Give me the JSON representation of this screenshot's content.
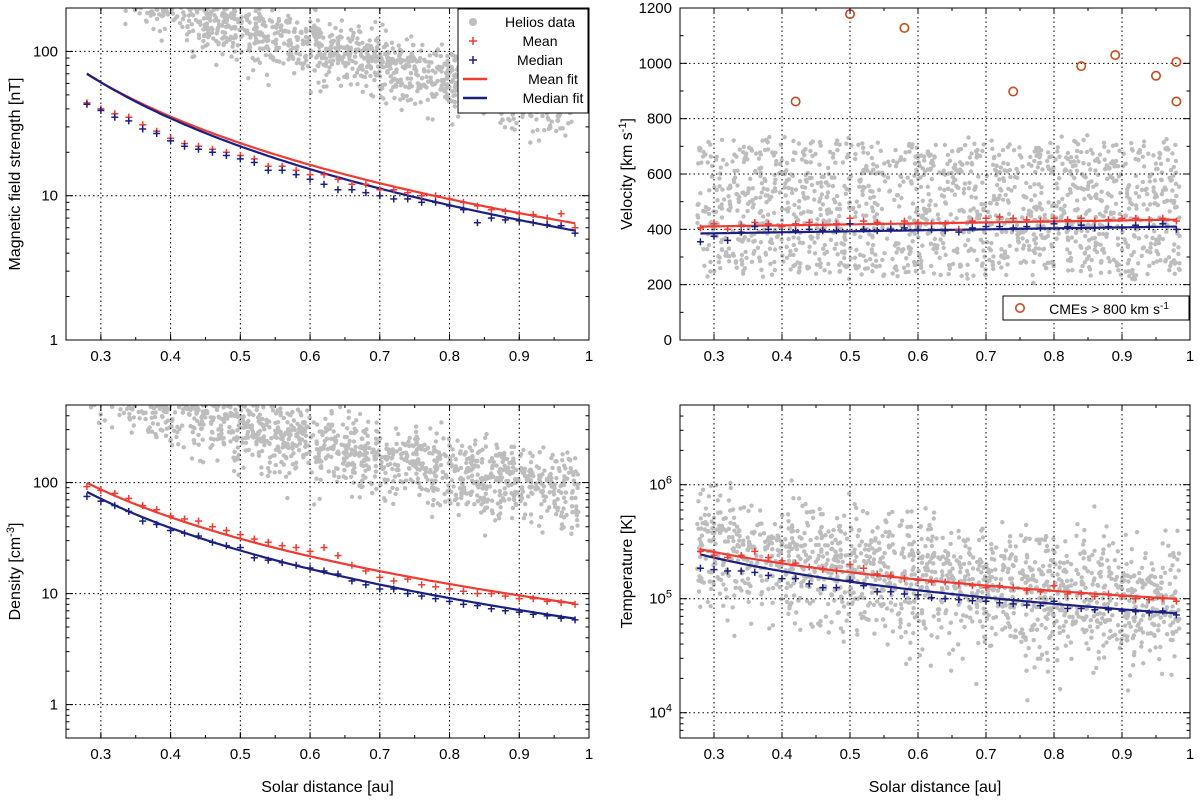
{
  "colors": {
    "scatter": "#bdbdbd",
    "mean": "#f03b32",
    "median": "#1a1f80",
    "cme": "#c94a1c"
  },
  "legend": {
    "helios": "Helios data",
    "mean": "Mean",
    "median": "Median",
    "mean_fit": "Mean fit",
    "median_fit": "Median fit"
  },
  "cme_legend": "CMEs > 800 km s",
  "cme_legend_sup": "-1",
  "chart_data": [
    {
      "id": "bfield",
      "type": "scatter",
      "scale": "log",
      "xlabel": "",
      "ylabel_main": "Magnetic field strength [nT]",
      "xlim": [
        0.25,
        1.0
      ],
      "ylim": [
        1,
        200
      ],
      "x_ticks": [
        "0.3",
        "0.4",
        "0.5",
        "0.6",
        "0.7",
        "0.8",
        "0.9",
        "1"
      ],
      "y_ticks": [
        {
          "v": 1,
          "main": "1",
          "sup": ""
        },
        {
          "v": 10,
          "main": "10",
          "sup": ""
        },
        {
          "v": 100,
          "main": "100",
          "sup": ""
        }
      ],
      "cloud": {
        "a": 45,
        "b": -1.75,
        "spread_lo": 0.45,
        "spread_hi": 0.35
      },
      "mean_fit": {
        "a": 6.2,
        "b": -1.9
      },
      "median_fit": {
        "a": 5.5,
        "b": -2.0
      },
      "mean": [
        [
          0.28,
          44
        ],
        [
          0.3,
          40
        ],
        [
          0.32,
          37
        ],
        [
          0.34,
          35
        ],
        [
          0.36,
          31
        ],
        [
          0.38,
          28
        ],
        [
          0.4,
          25
        ],
        [
          0.42,
          23
        ],
        [
          0.44,
          22
        ],
        [
          0.46,
          21
        ],
        [
          0.48,
          20
        ],
        [
          0.5,
          19
        ],
        [
          0.52,
          18
        ],
        [
          0.54,
          16
        ],
        [
          0.56,
          16
        ],
        [
          0.58,
          15
        ],
        [
          0.6,
          14
        ],
        [
          0.62,
          14
        ],
        [
          0.64,
          13
        ],
        [
          0.66,
          12
        ],
        [
          0.68,
          12
        ],
        [
          0.7,
          11
        ],
        [
          0.72,
          11
        ],
        [
          0.74,
          10.5
        ],
        [
          0.76,
          10
        ],
        [
          0.78,
          10
        ],
        [
          0.8,
          9.5
        ],
        [
          0.82,
          9
        ],
        [
          0.84,
          8.5
        ],
        [
          0.86,
          8
        ],
        [
          0.88,
          7.8
        ],
        [
          0.9,
          7.5
        ],
        [
          0.92,
          7.4
        ],
        [
          0.94,
          7
        ],
        [
          0.96,
          7.5
        ],
        [
          0.98,
          6
        ]
      ],
      "median": [
        [
          0.28,
          43
        ],
        [
          0.3,
          39
        ],
        [
          0.32,
          35
        ],
        [
          0.34,
          33
        ],
        [
          0.36,
          29
        ],
        [
          0.38,
          27
        ],
        [
          0.4,
          24
        ],
        [
          0.42,
          22
        ],
        [
          0.44,
          21
        ],
        [
          0.46,
          20
        ],
        [
          0.48,
          19
        ],
        [
          0.5,
          18
        ],
        [
          0.52,
          17
        ],
        [
          0.54,
          15
        ],
        [
          0.56,
          15
        ],
        [
          0.58,
          14
        ],
        [
          0.6,
          13
        ],
        [
          0.62,
          12
        ],
        [
          0.64,
          11
        ],
        [
          0.66,
          11
        ],
        [
          0.68,
          10.5
        ],
        [
          0.7,
          10
        ],
        [
          0.72,
          9.5
        ],
        [
          0.74,
          9.5
        ],
        [
          0.76,
          9
        ],
        [
          0.78,
          9
        ],
        [
          0.8,
          8.5
        ],
        [
          0.82,
          8
        ],
        [
          0.84,
          6.5
        ],
        [
          0.86,
          7
        ],
        [
          0.88,
          6.8
        ],
        [
          0.9,
          6.7
        ],
        [
          0.92,
          6.5
        ],
        [
          0.94,
          6.3
        ],
        [
          0.96,
          6.2
        ],
        [
          0.98,
          5.5
        ]
      ]
    },
    {
      "id": "velocity",
      "type": "scatter",
      "scale": "linear",
      "xlabel": "",
      "ylabel_main": "Velocity [km s",
      "ylabel_sup": "-1",
      "ylabel_tail": "]",
      "xlim": [
        0.25,
        1.0
      ],
      "ylim": [
        0,
        1200
      ],
      "x_ticks": [
        "0.3",
        "0.4",
        "0.5",
        "0.6",
        "0.7",
        "0.8",
        "0.9",
        "1"
      ],
      "y_ticks": [
        {
          "v": 0,
          "main": "0",
          "sup": ""
        },
        {
          "v": 200,
          "main": "200",
          "sup": ""
        },
        {
          "v": 400,
          "main": "400",
          "sup": ""
        },
        {
          "v": 600,
          "main": "600",
          "sup": ""
        },
        {
          "v": 800,
          "main": "800",
          "sup": ""
        },
        {
          "v": 1000,
          "main": "1000",
          "sup": ""
        },
        {
          "v": 1200,
          "main": "1200",
          "sup": ""
        }
      ],
      "cloud": {
        "lo": 230,
        "hi": 720
      },
      "mean_fit": {
        "y0": 410,
        "y1": 435
      },
      "median_fit": {
        "y0": 385,
        "y1": 410
      },
      "mean": [
        [
          0.28,
          405
        ],
        [
          0.3,
          420
        ],
        [
          0.32,
          400
        ],
        [
          0.34,
          415
        ],
        [
          0.36,
          425
        ],
        [
          0.38,
          420
        ],
        [
          0.4,
          410
        ],
        [
          0.42,
          420
        ],
        [
          0.44,
          425
        ],
        [
          0.46,
          415
        ],
        [
          0.48,
          420
        ],
        [
          0.5,
          440
        ],
        [
          0.52,
          430
        ],
        [
          0.54,
          425
        ],
        [
          0.56,
          420
        ],
        [
          0.58,
          430
        ],
        [
          0.6,
          425
        ],
        [
          0.62,
          420
        ],
        [
          0.64,
          420
        ],
        [
          0.66,
          400
        ],
        [
          0.68,
          430
        ],
        [
          0.7,
          440
        ],
        [
          0.72,
          445
        ],
        [
          0.74,
          440
        ],
        [
          0.76,
          435
        ],
        [
          0.78,
          430
        ],
        [
          0.8,
          440
        ],
        [
          0.82,
          435
        ],
        [
          0.84,
          440
        ],
        [
          0.86,
          430
        ],
        [
          0.88,
          435
        ],
        [
          0.9,
          440
        ],
        [
          0.92,
          440
        ],
        [
          0.94,
          435
        ],
        [
          0.96,
          440
        ],
        [
          0.98,
          430
        ]
      ],
      "median": [
        [
          0.28,
          355
        ],
        [
          0.3,
          375
        ],
        [
          0.32,
          360
        ],
        [
          0.34,
          390
        ],
        [
          0.36,
          410
        ],
        [
          0.38,
          400
        ],
        [
          0.4,
          390
        ],
        [
          0.42,
          395
        ],
        [
          0.44,
          400
        ],
        [
          0.46,
          395
        ],
        [
          0.48,
          395
        ],
        [
          0.5,
          420
        ],
        [
          0.52,
          400
        ],
        [
          0.54,
          395
        ],
        [
          0.56,
          400
        ],
        [
          0.58,
          405
        ],
        [
          0.6,
          400
        ],
        [
          0.62,
          400
        ],
        [
          0.64,
          395
        ],
        [
          0.66,
          390
        ],
        [
          0.68,
          405
        ],
        [
          0.7,
          410
        ],
        [
          0.72,
          410
        ],
        [
          0.74,
          405
        ],
        [
          0.76,
          410
        ],
        [
          0.78,
          405
        ],
        [
          0.8,
          420
        ],
        [
          0.82,
          410
        ],
        [
          0.84,
          415
        ],
        [
          0.86,
          405
        ],
        [
          0.88,
          410
        ],
        [
          0.9,
          405
        ],
        [
          0.92,
          415
        ],
        [
          0.94,
          410
        ],
        [
          0.96,
          420
        ],
        [
          0.98,
          400
        ]
      ],
      "cmes": [
        [
          0.42,
          862
        ],
        [
          0.5,
          1178
        ],
        [
          0.58,
          1128
        ],
        [
          0.74,
          898
        ],
        [
          0.84,
          990
        ],
        [
          0.89,
          1030
        ],
        [
          0.95,
          955
        ],
        [
          0.98,
          1005
        ],
        [
          0.98,
          862
        ]
      ]
    },
    {
      "id": "density",
      "type": "scatter",
      "scale": "log",
      "xlabel": "Solar distance [au]",
      "ylabel_main": "Density [cm",
      "ylabel_sup": "-3",
      "ylabel_tail": "]",
      "xlim": [
        0.25,
        1.0
      ],
      "ylim": [
        0.5,
        500
      ],
      "x_ticks": [
        "0.3",
        "0.4",
        "0.5",
        "0.6",
        "0.7",
        "0.8",
        "0.9",
        "1"
      ],
      "y_ticks": [
        {
          "v": 1,
          "main": "1",
          "sup": ""
        },
        {
          "v": 10,
          "main": "10",
          "sup": ""
        },
        {
          "v": 100,
          "main": "100",
          "sup": ""
        }
      ],
      "cloud": {
        "a": 85,
        "b": -2.0,
        "spread_lo": 0.7,
        "spread_hi": 0.5
      },
      "mean_fit": {
        "a": 7.8,
        "b": -2.0
      },
      "median_fit": {
        "a": 5.7,
        "b": -2.1
      },
      "mean": [
        [
          0.28,
          92
        ],
        [
          0.3,
          85
        ],
        [
          0.32,
          80
        ],
        [
          0.34,
          72
        ],
        [
          0.36,
          62
        ],
        [
          0.38,
          57
        ],
        [
          0.4,
          50
        ],
        [
          0.42,
          47
        ],
        [
          0.44,
          45
        ],
        [
          0.46,
          40
        ],
        [
          0.48,
          37
        ],
        [
          0.5,
          34
        ],
        [
          0.52,
          31
        ],
        [
          0.54,
          29
        ],
        [
          0.56,
          27
        ],
        [
          0.58,
          26
        ],
        [
          0.6,
          24
        ],
        [
          0.62,
          26
        ],
        [
          0.64,
          22
        ],
        [
          0.66,
          18
        ],
        [
          0.68,
          16
        ],
        [
          0.7,
          14
        ],
        [
          0.72,
          13
        ],
        [
          0.74,
          13.5
        ],
        [
          0.76,
          12
        ],
        [
          0.78,
          11.5
        ],
        [
          0.8,
          11
        ],
        [
          0.82,
          10.5
        ],
        [
          0.84,
          10
        ],
        [
          0.86,
          10
        ],
        [
          0.88,
          9.5
        ],
        [
          0.9,
          9
        ],
        [
          0.92,
          9
        ],
        [
          0.94,
          8.5
        ],
        [
          0.96,
          8.3
        ],
        [
          0.98,
          8
        ]
      ],
      "median": [
        [
          0.28,
          75
        ],
        [
          0.3,
          68
        ],
        [
          0.32,
          62
        ],
        [
          0.34,
          55
        ],
        [
          0.36,
          45
        ],
        [
          0.38,
          42
        ],
        [
          0.4,
          37
        ],
        [
          0.42,
          35
        ],
        [
          0.44,
          33
        ],
        [
          0.46,
          29
        ],
        [
          0.48,
          27
        ],
        [
          0.5,
          26
        ],
        [
          0.52,
          21
        ],
        [
          0.54,
          20
        ],
        [
          0.56,
          19
        ],
        [
          0.58,
          18
        ],
        [
          0.6,
          17
        ],
        [
          0.62,
          16
        ],
        [
          0.64,
          15
        ],
        [
          0.66,
          13
        ],
        [
          0.68,
          12
        ],
        [
          0.7,
          11
        ],
        [
          0.72,
          11
        ],
        [
          0.74,
          10
        ],
        [
          0.76,
          9.5
        ],
        [
          0.78,
          9
        ],
        [
          0.8,
          8.5
        ],
        [
          0.82,
          8
        ],
        [
          0.84,
          7.8
        ],
        [
          0.86,
          7.3
        ],
        [
          0.88,
          7
        ],
        [
          0.9,
          6.8
        ],
        [
          0.92,
          6.5
        ],
        [
          0.94,
          6.3
        ],
        [
          0.96,
          6
        ],
        [
          0.98,
          5.8
        ]
      ]
    },
    {
      "id": "temperature",
      "type": "scatter",
      "scale": "log",
      "xlabel": "Solar distance [au]",
      "ylabel_main": "Temperature [K]",
      "xlim": [
        0.25,
        1.0
      ],
      "ylim": [
        6000,
        5000000
      ],
      "x_ticks": [
        "0.3",
        "0.4",
        "0.5",
        "0.6",
        "0.7",
        "0.8",
        "0.9",
        "1"
      ],
      "y_ticks": [
        {
          "v": 10000,
          "main": "10",
          "sup": "4"
        },
        {
          "v": 100000,
          "main": "10",
          "sup": "5"
        },
        {
          "v": 1000000,
          "main": "10",
          "sup": "6"
        }
      ],
      "cloud": {
        "a": 95000,
        "b": -0.95,
        "spread_lo": 1.1,
        "spread_hi": 0.95
      },
      "mean_fit": {
        "a": 98000,
        "b": -0.8
      },
      "median_fit": {
        "a": 73000,
        "b": -0.95
      },
      "mean": [
        [
          0.28,
          260000
        ],
        [
          0.3,
          240000
        ],
        [
          0.32,
          230000
        ],
        [
          0.34,
          240000
        ],
        [
          0.36,
          260000
        ],
        [
          0.38,
          230000
        ],
        [
          0.4,
          215000
        ],
        [
          0.42,
          205000
        ],
        [
          0.44,
          190000
        ],
        [
          0.46,
          180000
        ],
        [
          0.48,
          175000
        ],
        [
          0.5,
          200000
        ],
        [
          0.52,
          185000
        ],
        [
          0.54,
          165000
        ],
        [
          0.56,
          160000
        ],
        [
          0.58,
          150000
        ],
        [
          0.6,
          145000
        ],
        [
          0.62,
          140000
        ],
        [
          0.64,
          140000
        ],
        [
          0.66,
          135000
        ],
        [
          0.68,
          130000
        ],
        [
          0.7,
          125000
        ],
        [
          0.72,
          130000
        ],
        [
          0.74,
          125000
        ],
        [
          0.76,
          118000
        ],
        [
          0.78,
          115000
        ],
        [
          0.8,
          130000
        ],
        [
          0.82,
          110000
        ],
        [
          0.84,
          110000
        ],
        [
          0.86,
          105000
        ],
        [
          0.88,
          110000
        ],
        [
          0.9,
          105000
        ],
        [
          0.92,
          100000
        ],
        [
          0.94,
          98000
        ],
        [
          0.96,
          100000
        ],
        [
          0.98,
          95000
        ]
      ],
      "median": [
        [
          0.28,
          185000
        ],
        [
          0.3,
          180000
        ],
        [
          0.32,
          175000
        ],
        [
          0.34,
          175000
        ],
        [
          0.36,
          170000
        ],
        [
          0.38,
          160000
        ],
        [
          0.4,
          150000
        ],
        [
          0.42,
          150000
        ],
        [
          0.44,
          135000
        ],
        [
          0.46,
          125000
        ],
        [
          0.48,
          125000
        ],
        [
          0.5,
          145000
        ],
        [
          0.52,
          130000
        ],
        [
          0.54,
          115000
        ],
        [
          0.56,
          115000
        ],
        [
          0.58,
          110000
        ],
        [
          0.6,
          108000
        ],
        [
          0.62,
          102000
        ],
        [
          0.64,
          100000
        ],
        [
          0.66,
          98000
        ],
        [
          0.68,
          96000
        ],
        [
          0.7,
          95000
        ],
        [
          0.72,
          92000
        ],
        [
          0.74,
          90000
        ],
        [
          0.76,
          88000
        ],
        [
          0.78,
          87000
        ],
        [
          0.8,
          95000
        ],
        [
          0.82,
          82000
        ],
        [
          0.84,
          82000
        ],
        [
          0.86,
          80000
        ],
        [
          0.88,
          80000
        ],
        [
          0.9,
          78000
        ],
        [
          0.92,
          77000
        ],
        [
          0.94,
          75000
        ],
        [
          0.96,
          78000
        ],
        [
          0.98,
          72000
        ]
      ]
    }
  ]
}
